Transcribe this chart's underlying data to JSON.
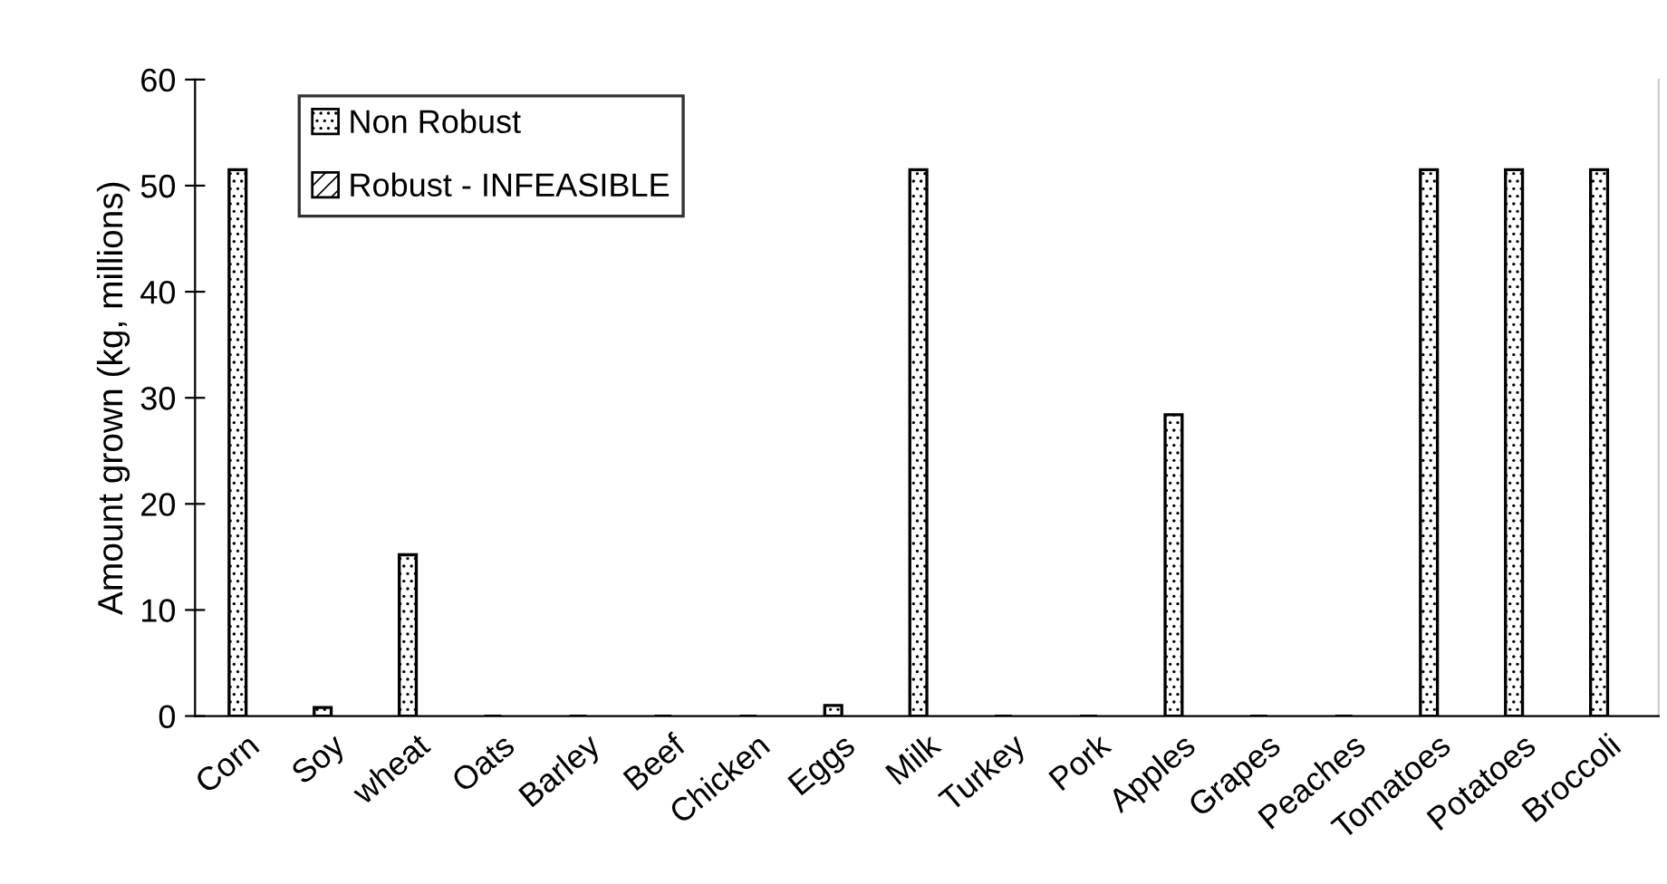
{
  "chart_data": {
    "type": "bar",
    "ylabel": "Amount grown (kg, millions)",
    "categories": [
      "Corn",
      "Soy",
      "wheat",
      "Oats",
      "Barley",
      "Beef",
      "Chicken",
      "Eggs",
      "Milk",
      "Turkey",
      "Pork",
      "Apples",
      "Grapes",
      "Peaches",
      "Tomatoes",
      "Potatoes",
      "Broccoli"
    ],
    "series": [
      {
        "name": "Non Robust",
        "color": "#000000",
        "values": [
          51.5,
          0.8,
          15.2,
          0,
          0,
          0,
          0,
          1.0,
          51.5,
          0,
          0,
          28.4,
          0,
          0,
          51.5,
          51.5,
          51.5
        ]
      },
      {
        "name": "Robust - INFEASIBLE",
        "color": "#000000",
        "values": [
          null,
          null,
          null,
          null,
          null,
          null,
          null,
          null,
          null,
          null,
          null,
          null,
          null,
          null,
          null,
          null,
          null
        ]
      }
    ],
    "ylim": [
      0,
      60
    ],
    "yticks": [
      0,
      10,
      20,
      30,
      40,
      50,
      60
    ],
    "grid": false,
    "legend": "top left"
  }
}
